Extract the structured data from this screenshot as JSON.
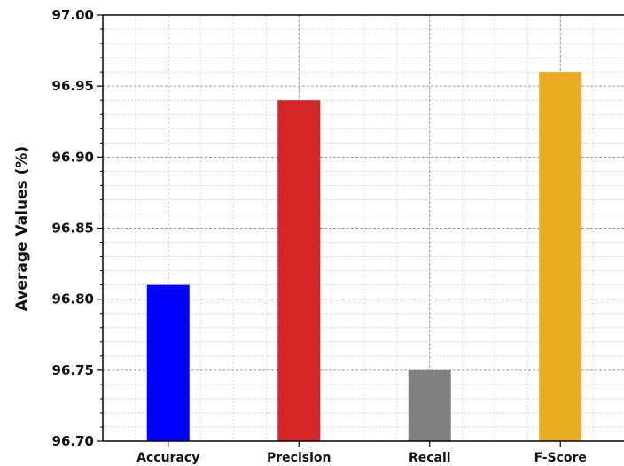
{
  "chart_data": {
    "type": "bar",
    "title": "",
    "xlabel": "",
    "ylabel": "Average Values (%)",
    "categories": [
      "Accuracy",
      "Precision",
      "Recall",
      "F-Score"
    ],
    "values": [
      96.81,
      96.94,
      96.75,
      96.96
    ],
    "colors": [
      "#0000ff",
      "#d62728",
      "#808080",
      "#eaac22"
    ],
    "ylim": [
      96.7,
      97.0
    ],
    "yticks": [
      "96.70",
      "96.75",
      "96.80",
      "96.85",
      "96.90",
      "96.95",
      "97.00"
    ],
    "grid": true
  }
}
